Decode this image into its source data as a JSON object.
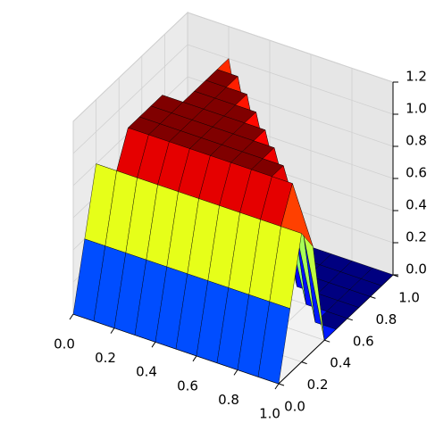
{
  "chart_data": {
    "type": "surface3d",
    "x": [
      0,
      0.1,
      0.2,
      0.3,
      0.4,
      0.5,
      0.6,
      0.7,
      0.8,
      0.9,
      1
    ],
    "y": [
      0,
      0.1,
      0.2,
      0.3,
      0.4,
      0.5,
      0.6,
      0.7,
      0.8,
      0.9,
      1
    ],
    "z": [
      [
        0,
        0,
        0,
        0,
        0,
        0,
        0,
        0,
        0,
        0,
        0
      ],
      [
        0.4,
        0.4,
        0.4,
        0.4,
        0.4,
        0.4,
        0.4,
        0.4,
        0.4,
        0.4,
        0.4
      ],
      [
        0.8,
        0.8,
        0.8,
        0.8,
        0.8,
        0.8,
        0.8,
        0.8,
        0.8,
        0.8,
        0.8
      ],
      [
        0,
        1,
        1,
        1,
        1,
        1,
        1,
        1,
        1,
        1,
        0.65
      ],
      [
        0,
        1,
        1,
        1,
        1,
        1,
        1,
        1,
        1,
        0.6,
        0
      ],
      [
        0,
        1,
        1,
        1,
        1,
        1,
        1,
        1,
        0.56,
        0,
        0
      ],
      [
        0,
        1,
        1,
        1,
        1,
        1,
        1,
        0.51,
        0,
        0,
        0
      ],
      [
        0,
        0,
        1,
        1,
        1,
        1,
        0.47,
        0,
        0,
        0,
        0
      ],
      [
        0,
        0,
        1,
        1,
        1,
        0.42,
        0,
        0,
        0,
        0,
        0
      ],
      [
        0,
        0,
        1,
        1,
        0.38,
        0,
        0,
        0,
        0,
        0,
        0
      ],
      [
        0,
        0,
        1,
        0.33,
        0,
        0,
        0,
        0,
        0,
        0,
        0
      ]
    ],
    "colormap": "jet",
    "xlim": [
      0,
      1
    ],
    "ylim": [
      0,
      1
    ],
    "zlim": [
      0,
      1.2
    ],
    "xticks": [
      {
        "value": 0,
        "label": "0.0"
      },
      {
        "value": 0.2,
        "label": "0.2"
      },
      {
        "value": 0.4,
        "label": "0.4"
      },
      {
        "value": 0.6,
        "label": "0.6"
      },
      {
        "value": 0.8,
        "label": "0.8"
      },
      {
        "value": 1,
        "label": "1.0"
      }
    ],
    "yticks": [
      {
        "value": 0,
        "label": "0.0"
      },
      {
        "value": 0.2,
        "label": "0.2"
      },
      {
        "value": 0.4,
        "label": "0.4"
      },
      {
        "value": 0.6,
        "label": "0.6"
      },
      {
        "value": 0.8,
        "label": "0.8"
      },
      {
        "value": 1,
        "label": "1.0"
      }
    ],
    "zticks": [
      {
        "value": 0,
        "label": "0.0"
      },
      {
        "value": 0.2,
        "label": "0.2"
      },
      {
        "value": 0.4,
        "label": "0.4"
      },
      {
        "value": 0.6,
        "label": "0.6"
      },
      {
        "value": 0.8,
        "label": "0.8"
      },
      {
        "value": 1,
        "label": "1.0"
      },
      {
        "value": 1.2,
        "label": "1.2"
      }
    ],
    "grid": true
  }
}
